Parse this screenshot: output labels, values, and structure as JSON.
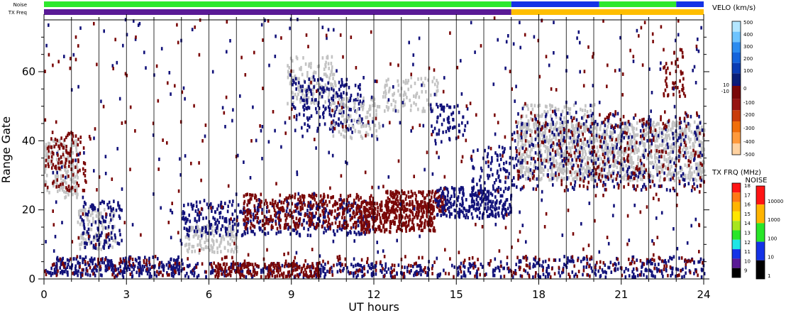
{
  "chart_data": {
    "type": "heatmap",
    "xlabel": "UT hours",
    "ylabel": "Range Gate",
    "xlim": [
      0,
      24
    ],
    "ylim": [
      0,
      75
    ],
    "x_ticks": [
      "0",
      "3",
      "6",
      "9",
      "12",
      "15",
      "18",
      "21",
      "24"
    ],
    "y_ticks": [
      "0",
      "20",
      "40",
      "60"
    ],
    "hour_gridlines": true,
    "top_bars": {
      "noise_label": "Noise",
      "freq_label": "TX Freq",
      "noise": [
        {
          "start": 0,
          "end": 17,
          "color": "#2ee82e"
        },
        {
          "start": 17,
          "end": 20.2,
          "color": "#1432e6"
        },
        {
          "start": 20.2,
          "end": 23.0,
          "color": "#2ee82e"
        },
        {
          "start": 23.0,
          "end": 24,
          "color": "#1432e6"
        }
      ],
      "freq": [
        {
          "start": 0,
          "end": 17,
          "color": "#5a1a96"
        },
        {
          "start": 17,
          "end": 24,
          "color": "#ffbe00"
        }
      ]
    },
    "scatter_colors": {
      "ground": "#c3c3c3",
      "towards": "#12127a",
      "away": "#7a0808"
    },
    "regions": [
      {
        "x0": 0.0,
        "x1": 17.0,
        "y0": 0,
        "y1": 4,
        "color": "#12127a",
        "density": 0.38
      },
      {
        "x0": 0.3,
        "x1": 5.0,
        "y0": 1,
        "y1": 6,
        "color": "#12127a",
        "density": 0.55
      },
      {
        "x0": 17.0,
        "x1": 24.0,
        "y0": 0,
        "y1": 6,
        "color": "#12127a",
        "density": 0.33
      },
      {
        "x0": 0.0,
        "x1": 24.0,
        "y0": 0,
        "y1": 6,
        "color": "#7a0808",
        "density": 0.12
      },
      {
        "x0": 6.2,
        "x1": 7.8,
        "y0": 0,
        "y1": 4,
        "color": "#7a0808",
        "density": 0.8
      },
      {
        "x0": 8.0,
        "x1": 10.0,
        "y0": 0,
        "y1": 4,
        "color": "#7a0808",
        "density": 0.82
      },
      {
        "x0": 0.0,
        "x1": 1.2,
        "y0": 23,
        "y1": 40,
        "color": "#c3c3c3",
        "density": 0.55
      },
      {
        "x0": 0.0,
        "x1": 1.5,
        "y0": 25,
        "y1": 42,
        "color": "#7a0808",
        "density": 0.3
      },
      {
        "x0": 1.2,
        "x1": 2.6,
        "y0": 8,
        "y1": 20,
        "color": "#c3c3c3",
        "density": 0.45
      },
      {
        "x0": 1.3,
        "x1": 2.8,
        "y0": 8,
        "y1": 22,
        "color": "#12127a",
        "density": 0.35
      },
      {
        "x0": 5.1,
        "x1": 7.0,
        "y0": 7,
        "y1": 15,
        "color": "#c3c3c3",
        "density": 0.6
      },
      {
        "x0": 5.0,
        "x1": 12.0,
        "y0": 12,
        "y1": 22,
        "color": "#12127a",
        "density": 0.35
      },
      {
        "x0": 7.2,
        "x1": 12.0,
        "y0": 14,
        "y1": 24,
        "color": "#7a0808",
        "density": 0.55
      },
      {
        "x0": 11.5,
        "x1": 14.2,
        "y0": 13,
        "y1": 22,
        "color": "#7a0808",
        "density": 0.9
      },
      {
        "x0": 12.4,
        "x1": 14.6,
        "y0": 19,
        "y1": 25,
        "color": "#7a0808",
        "density": 0.8
      },
      {
        "x0": 14.2,
        "x1": 17.0,
        "y0": 17,
        "y1": 26,
        "color": "#12127a",
        "density": 0.55
      },
      {
        "x0": 15.5,
        "x1": 17.0,
        "y0": 18,
        "y1": 38,
        "color": "#12127a",
        "density": 0.3
      },
      {
        "x0": 8.8,
        "x1": 10.6,
        "y0": 50,
        "y1": 64,
        "color": "#c3c3c3",
        "density": 0.4
      },
      {
        "x0": 9.0,
        "x1": 11.6,
        "y0": 42,
        "y1": 58,
        "color": "#12127a",
        "density": 0.3
      },
      {
        "x0": 10.4,
        "x1": 12.2,
        "y0": 40,
        "y1": 52,
        "color": "#c3c3c3",
        "density": 0.35
      },
      {
        "x0": 12.3,
        "x1": 14.3,
        "y0": 48,
        "y1": 58,
        "color": "#c3c3c3",
        "density": 0.3
      },
      {
        "x0": 14.0,
        "x1": 15.4,
        "y0": 38,
        "y1": 50,
        "color": "#12127a",
        "density": 0.25
      },
      {
        "x0": 17.2,
        "x1": 24.0,
        "y0": 28,
        "y1": 45,
        "color": "#c3c3c3",
        "density": 0.75
      },
      {
        "x0": 17.3,
        "x1": 20.0,
        "y0": 42,
        "y1": 50,
        "color": "#c3c3c3",
        "density": 0.35
      },
      {
        "x0": 17.0,
        "x1": 24.0,
        "y0": 25,
        "y1": 48,
        "color": "#12127a",
        "density": 0.14
      },
      {
        "x0": 17.0,
        "x1": 24.0,
        "y0": 25,
        "y1": 48,
        "color": "#7a0808",
        "density": 0.1
      },
      {
        "x0": 22.5,
        "x1": 23.3,
        "y0": 52,
        "y1": 66,
        "color": "#7a0808",
        "density": 0.3
      },
      {
        "x0": 0.0,
        "x1": 24.0,
        "y0": 0,
        "y1": 75,
        "color": "#12127a",
        "density": 0.012
      },
      {
        "x0": 0.0,
        "x1": 24.0,
        "y0": 0,
        "y1": 75,
        "color": "#7a0808",
        "density": 0.012
      }
    ],
    "velocity_legend": {
      "title": "VELO (km/s)",
      "labels": [
        "500",
        "400",
        "300",
        "200",
        "100",
        "0",
        "10",
        "-10",
        "-100",
        "-200",
        "-300",
        "-400",
        "-500"
      ],
      "colors": [
        "#b4e6ff",
        "#6ec4ff",
        "#2c8cf0",
        "#1464dc",
        "#0a3cb4",
        "#0a1e78",
        "#12127a",
        "#7a0808",
        "#961410",
        "#c83c0a",
        "#f06e0a",
        "#ff9a3c",
        "#ffd2a0"
      ]
    },
    "freq_legend": {
      "title": "TX FRQ (MHz)",
      "labels": [
        "18",
        "17",
        "16",
        "15",
        "14",
        "13",
        "12",
        "11",
        "10",
        "9"
      ],
      "colors": [
        "#ff1414",
        "#ff7814",
        "#ffb400",
        "#ffe600",
        "#a8e61e",
        "#28e628",
        "#1ee6e6",
        "#1432e6",
        "#5a1a96",
        "#000000"
      ]
    },
    "noise_legend": {
      "title": "NOISE",
      "labels": [
        "10000",
        "1000",
        "100",
        "10",
        "1"
      ],
      "colors": [
        "#ff1414",
        "#ffb400",
        "#28e628",
        "#1432e6",
        "#000000"
      ]
    }
  }
}
